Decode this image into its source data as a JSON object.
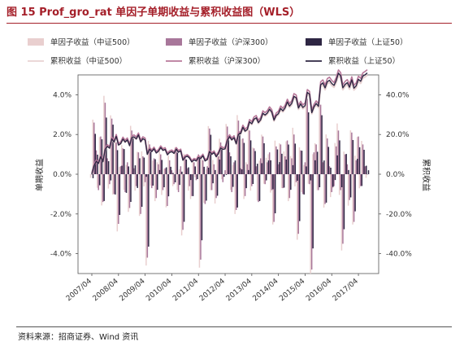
{
  "figure": {
    "title": "图 15 Prof_gro_rat 单因子单期收益与累积收益图（WLS）",
    "source": "资料来源：招商证券、Wind 资讯"
  },
  "chart_data": {
    "type": "bar+line",
    "ylabel_left": "单期收益",
    "ylabel_right": "累积收益",
    "ylim_left": [
      -5,
      5
    ],
    "ylim_right": [
      -50,
      50
    ],
    "yticks_left": [
      "-4.0%",
      "-2.0%",
      "0.0%",
      "2.0%",
      "4.0%"
    ],
    "yticks_right": [
      "-40.0%",
      "-20.0%",
      "0.0%",
      "20.0%",
      "40.0%"
    ],
    "x_tick_labels": [
      "2007/04",
      "2008/04",
      "2009/04",
      "2010/04",
      "2011/04",
      "2012/04",
      "2013/04",
      "2014/04",
      "2015/04",
      "2016/04",
      "2017/04"
    ],
    "x_start": "2007/04",
    "months": 125,
    "colors": {
      "bar_zz500": "#e9cfcf",
      "bar_hs300": "#a8779a",
      "bar_sz50": "#2e2643",
      "line_zz500": "#e8d2d2",
      "line_hs300": "#b8789a",
      "line_sz50": "#2e2643"
    },
    "legend": [
      {
        "label": "单因子收益（中证500）",
        "kind": "bar",
        "color": "#e9cfcf"
      },
      {
        "label": "单因子收益（沪深300）",
        "kind": "bar",
        "color": "#a8779a"
      },
      {
        "label": "单因子收益（上证50）",
        "kind": "bar",
        "color": "#2e2643"
      },
      {
        "label": "累积收益（中证500）",
        "kind": "line",
        "color": "#e8d2d2"
      },
      {
        "label": "累积收益（沪深300）",
        "kind": "line",
        "color": "#b8789a"
      },
      {
        "label": "累积收益（上证50）",
        "kind": "line",
        "color": "#2e2643"
      }
    ],
    "bars_hs300": [
      0.0,
      2.6,
      1.2,
      -0.8,
      1.9,
      -1.4,
      3.6,
      0.8,
      -0.5,
      2.8,
      -1.0,
      1.6,
      -2.5,
      0.4,
      1.3,
      -0.9,
      0.6,
      -1.7,
      2.2,
      0.3,
      -0.6,
      1.1,
      -2.0,
      0.9,
      -0.4,
      -4.2,
      1.5,
      -0.7,
      0.8,
      -1.2,
      0.5,
      1.0,
      -0.8,
      0.3,
      -1.6,
      0.7,
      0.2,
      -0.5,
      1.2,
      -0.9,
      0.4,
      -2.8,
      0.9,
      0.3,
      -0.6,
      -1.1,
      0.6,
      -0.3,
      1.0,
      -4.3,
      0.7,
      -1.5,
      0.4,
      2.3,
      -0.8,
      0.5,
      -1.2,
      0.9,
      1.6,
      -0.4,
      0.2,
      2.4,
      1.1,
      -0.9,
      0.6,
      -1.8,
      2.7,
      0.3,
      1.8,
      -1.1,
      0.5,
      2.2,
      -0.6,
      1.3,
      0.4,
      -1.4,
      0.8,
      1.9,
      -0.5,
      0.6,
      1.1,
      -0.8,
      -2.4,
      1.4,
      0.5,
      1.5,
      -0.7,
      0.9,
      1.7,
      -1.2,
      0.8,
      2.0,
      -0.4,
      -3.0,
      1.2,
      -1.0,
      0.6,
      3.8,
      -0.5,
      -4.8,
      1.1,
      1.5,
      -0.8,
      3.5,
      0.6,
      -1.5,
      1.8,
      0.4,
      -0.9,
      -0.6,
      1.4,
      2.2,
      -0.8,
      -3.5,
      1.0,
      0.5,
      -1.3,
      2.1,
      -2.4,
      0.7,
      1.9,
      -0.6,
      1.5,
      0.4,
      0.0
    ],
    "cum_sz50": [
      0.0,
      4.2,
      6.5,
      5.4,
      8.8,
      6.3,
      12.4,
      14.0,
      13.1,
      17.8,
      16.2,
      19.0,
      14.7,
      15.4,
      17.7,
      16.2,
      17.3,
      14.4,
      18.3,
      18.8,
      17.8,
      19.8,
      16.3,
      17.9,
      17.2,
      10.0,
      12.6,
      11.4,
      12.8,
      10.7,
      11.6,
      13.4,
      12.0,
      12.5,
      9.8,
      11.0,
      11.4,
      10.5,
      12.6,
      11.1,
      11.8,
      7.0,
      8.6,
      9.1,
      8.1,
      6.2,
      7.2,
      6.7,
      8.4,
      8.0,
      9.3,
      6.7,
      7.4,
      11.4,
      10.0,
      10.9,
      8.8,
      10.4,
      13.2,
      12.5,
      12.8,
      17.0,
      18.9,
      17.3,
      18.4,
      15.3,
      20.0,
      20.5,
      23.6,
      21.7,
      22.6,
      26.4,
      25.4,
      27.7,
      28.4,
      26.0,
      27.4,
      30.7,
      29.8,
      30.8,
      32.7,
      31.3,
      27.2,
      29.6,
      30.5,
      33.1,
      31.9,
      33.4,
      36.4,
      34.3,
      35.7,
      39.2,
      38.5,
      33.3,
      35.4,
      33.6,
      34.6,
      41.2,
      40.3,
      31.0,
      33.9,
      35.6,
      34.2,
      45.0,
      46.0,
      43.5,
      46.6,
      47.3,
      45.7,
      44.7,
      47.1,
      50.9,
      49.5,
      43.5,
      45.2,
      46.1,
      43.8,
      47.5,
      43.3,
      44.5,
      47.8,
      46.8,
      49.4,
      50.1,
      51.0
    ]
  }
}
